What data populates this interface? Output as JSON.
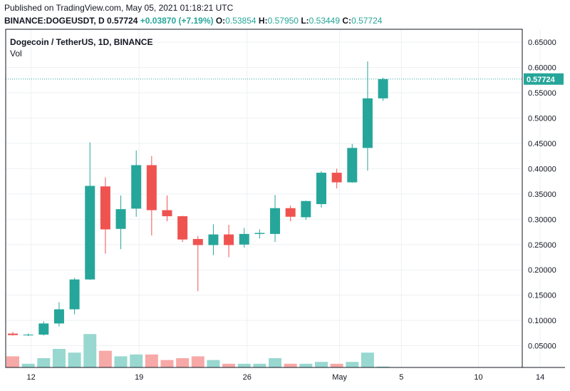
{
  "header": {
    "published": "Published on TradingView.com, May 05, 2021 01:18:21 UTC",
    "symbol_line": "BINANCE:DOGEUSDT, D",
    "last": "0.57724",
    "change": "+0.03870 (+7.19%)",
    "o_label": "O:",
    "o_value": "0.53854",
    "h_label": "H:",
    "h_value": "0.57950",
    "l_label": "L:",
    "l_value": "0.53449",
    "c_label": "C:",
    "c_value": "0.57724"
  },
  "legend": {
    "title": "Dogecoin / TetherUS, 1D, BINANCE",
    "volume": "Vol"
  },
  "colors": {
    "up": "#26a69a",
    "down": "#ef5350",
    "vol_up": "#98d8d0",
    "vol_down": "#f7a9a7",
    "last_label_bg": "#26a69a",
    "grid": "#eef0f3"
  },
  "chart_data": {
    "type": "candlestick",
    "y_axis": {
      "min": 0,
      "max": 0.67,
      "ticks": [
        "0.65000",
        "0.60000",
        "0.55000",
        "0.50000",
        "0.45000",
        "0.40000",
        "0.35000",
        "0.30000",
        "0.25000",
        "0.20000",
        "0.15000",
        "0.10000",
        "0.05000"
      ],
      "tick_values": [
        0.65,
        0.6,
        0.55,
        0.5,
        0.45,
        0.4,
        0.35,
        0.3,
        0.25,
        0.2,
        0.15,
        0.1,
        0.05
      ]
    },
    "x_axis": {
      "labels": [
        "12",
        "19",
        "26",
        "May",
        "5",
        "10",
        "14"
      ],
      "label_day_index": [
        1,
        8,
        15,
        21,
        25,
        30,
        34
      ]
    },
    "last_price_label": "0.57724",
    "last_price": 0.57724,
    "candles": [
      {
        "day": 0,
        "o": 0.074,
        "h": 0.077,
        "l": 0.07,
        "c": 0.071
      },
      {
        "day": 1,
        "o": 0.071,
        "h": 0.074,
        "l": 0.069,
        "c": 0.072
      },
      {
        "day": 2,
        "o": 0.072,
        "h": 0.098,
        "l": 0.07,
        "c": 0.094
      },
      {
        "day": 3,
        "o": 0.094,
        "h": 0.136,
        "l": 0.088,
        "c": 0.122
      },
      {
        "day": 4,
        "o": 0.122,
        "h": 0.184,
        "l": 0.112,
        "c": 0.181
      },
      {
        "day": 5,
        "o": 0.181,
        "h": 0.452,
        "l": 0.18,
        "c": 0.366
      },
      {
        "day": 6,
        "o": 0.365,
        "h": 0.383,
        "l": 0.232,
        "c": 0.28
      },
      {
        "day": 7,
        "o": 0.281,
        "h": 0.347,
        "l": 0.241,
        "c": 0.32
      },
      {
        "day": 8,
        "o": 0.321,
        "h": 0.436,
        "l": 0.305,
        "c": 0.407
      },
      {
        "day": 9,
        "o": 0.407,
        "h": 0.425,
        "l": 0.268,
        "c": 0.318
      },
      {
        "day": 10,
        "o": 0.318,
        "h": 0.347,
        "l": 0.296,
        "c": 0.306
      },
      {
        "day": 11,
        "o": 0.306,
        "h": 0.307,
        "l": 0.255,
        "c": 0.26
      },
      {
        "day": 12,
        "o": 0.261,
        "h": 0.267,
        "l": 0.158,
        "c": 0.249
      },
      {
        "day": 13,
        "o": 0.249,
        "h": 0.29,
        "l": 0.229,
        "c": 0.27
      },
      {
        "day": 14,
        "o": 0.27,
        "h": 0.289,
        "l": 0.225,
        "c": 0.249
      },
      {
        "day": 15,
        "o": 0.25,
        "h": 0.283,
        "l": 0.244,
        "c": 0.271
      },
      {
        "day": 16,
        "o": 0.271,
        "h": 0.28,
        "l": 0.262,
        "c": 0.273
      },
      {
        "day": 17,
        "o": 0.271,
        "h": 0.348,
        "l": 0.255,
        "c": 0.322
      },
      {
        "day": 18,
        "o": 0.322,
        "h": 0.327,
        "l": 0.296,
        "c": 0.305
      },
      {
        "day": 19,
        "o": 0.304,
        "h": 0.337,
        "l": 0.299,
        "c": 0.336
      },
      {
        "day": 20,
        "o": 0.33,
        "h": 0.395,
        "l": 0.323,
        "c": 0.392
      },
      {
        "day": 21,
        "o": 0.392,
        "h": 0.4,
        "l": 0.361,
        "c": 0.373
      },
      {
        "day": 22,
        "o": 0.373,
        "h": 0.449,
        "l": 0.372,
        "c": 0.441
      },
      {
        "day": 23,
        "o": 0.441,
        "h": 0.612,
        "l": 0.396,
        "c": 0.539
      },
      {
        "day": 24,
        "o": 0.539,
        "h": 0.58,
        "l": 0.534,
        "c": 0.577
      }
    ],
    "volume": {
      "scale_max": 0.5,
      "values": [
        0.06,
        0.02,
        0.05,
        0.1,
        0.08,
        0.18,
        0.09,
        0.06,
        0.07,
        0.07,
        0.04,
        0.05,
        0.06,
        0.04,
        0.02,
        0.02,
        0.02,
        0.05,
        0.02,
        0.02,
        0.03,
        0.02,
        0.03,
        0.08,
        0.005
      ]
    }
  }
}
